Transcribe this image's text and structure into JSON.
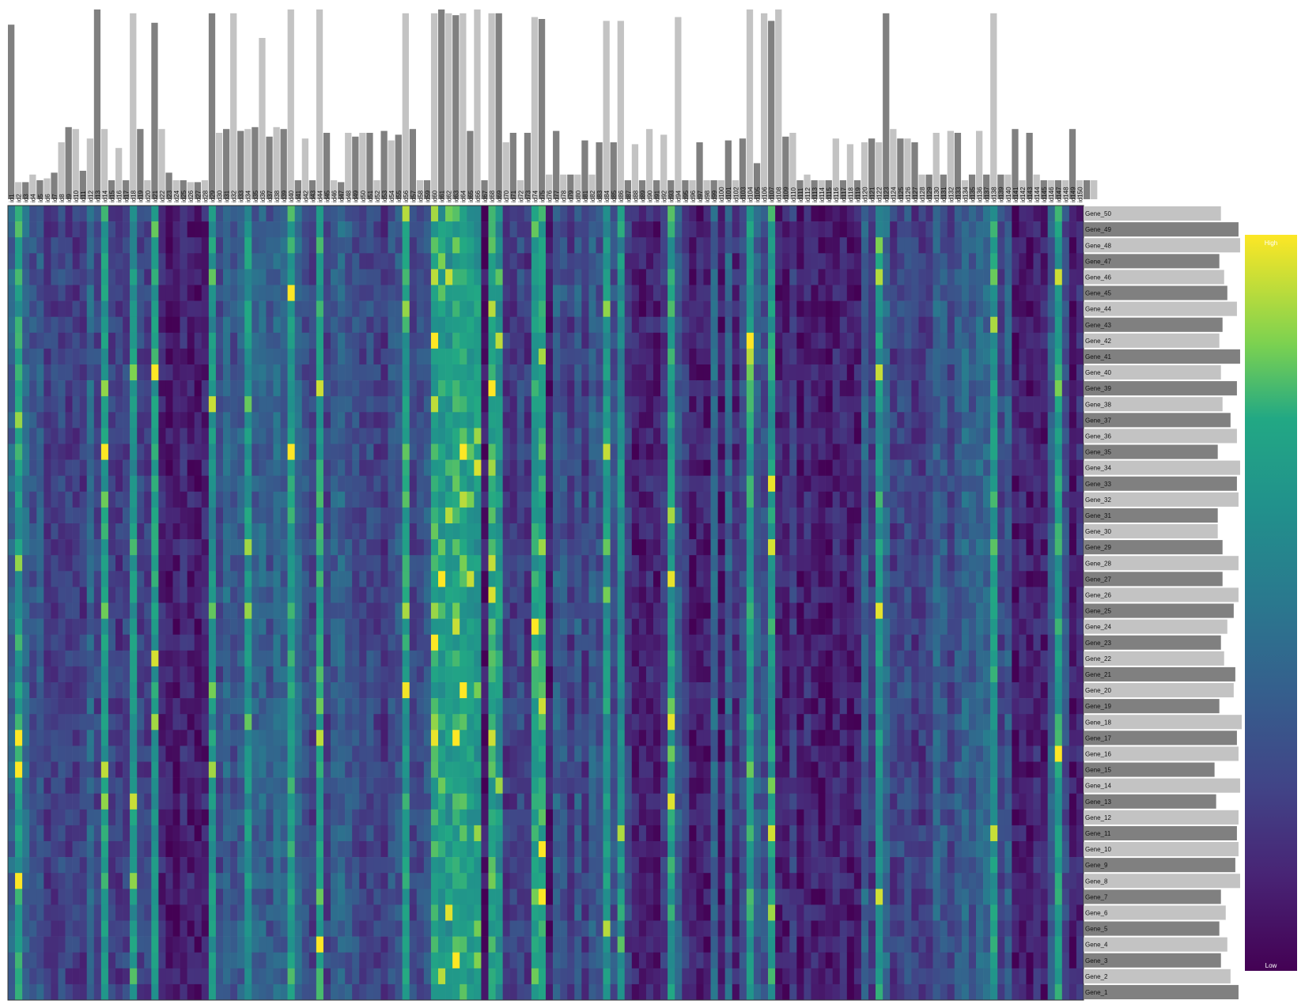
{
  "chart_data": {
    "type": "heatmap",
    "title": "",
    "color_scale": "viridis",
    "colors": {
      "bar_dark": "#808080",
      "bar_light": "#c3c3c3",
      "low": "#440154",
      "high": "#fde725",
      "background": "#ffffff"
    },
    "legend": {
      "high_label": "High",
      "low_label": "Low",
      "placement": "right"
    },
    "columns": [
      "id1",
      "id2",
      "id3",
      "id4",
      "id5",
      "id6",
      "id7",
      "id8",
      "id9",
      "id10",
      "id11",
      "id12",
      "id13",
      "id14",
      "id15",
      "id16",
      "id17",
      "id18",
      "id19",
      "id20",
      "id21",
      "id22",
      "id23",
      "id24",
      "id25",
      "id26",
      "id27",
      "id28",
      "id29",
      "id30",
      "id31",
      "id32",
      "id33",
      "id34",
      "id35",
      "id36",
      "id37",
      "id38",
      "id39",
      "id40",
      "id41",
      "id42",
      "id43",
      "id44",
      "id45",
      "id46",
      "id47",
      "id48",
      "id49",
      "id50",
      "id51",
      "id52",
      "id53",
      "id54",
      "id55",
      "id56",
      "id57",
      "id58",
      "id59",
      "id60",
      "id61",
      "id62",
      "id63",
      "id64",
      "id65",
      "id66",
      "id67",
      "id68",
      "id69",
      "id70",
      "id71",
      "id72",
      "id73",
      "id74",
      "id75",
      "id76",
      "id77",
      "id78",
      "id79",
      "id80",
      "id81",
      "id82",
      "id83",
      "id84",
      "id85",
      "id86",
      "id87",
      "id88",
      "id89",
      "id90",
      "id91",
      "id92",
      "id93",
      "id94",
      "id95",
      "id96",
      "id97",
      "id98",
      "id99",
      "id100",
      "id101",
      "id102",
      "id103",
      "id104",
      "id105",
      "id106",
      "id107",
      "id108",
      "id109",
      "id110",
      "id111",
      "id112",
      "id113",
      "id114",
      "id115",
      "id116",
      "id117",
      "id118",
      "id119",
      "id120",
      "id121",
      "id122",
      "id123",
      "id124",
      "id125",
      "id126",
      "id127",
      "id128",
      "id129",
      "id130",
      "id131",
      "id132",
      "id133",
      "id134",
      "id135",
      "id136",
      "id137",
      "id138",
      "id139",
      "id140",
      "id141",
      "id142",
      "id143",
      "id144",
      "id145",
      "id146",
      "id147",
      "id148",
      "id149",
      "id150"
    ],
    "rows_top_to_bottom": [
      "Gene_50",
      "Gene_49",
      "Gene_48",
      "Gene_47",
      "Gene_46",
      "Gene_45",
      "Gene_44",
      "Gene_43",
      "Gene_42",
      "Gene_41",
      "Gene_40",
      "Gene_39",
      "Gene_38",
      "Gene_37",
      "Gene_36",
      "Gene_35",
      "Gene_34",
      "Gene_33",
      "Gene_32",
      "Gene_31",
      "Gene_30",
      "Gene_29",
      "Gene_28",
      "Gene_27",
      "Gene_26",
      "Gene_25",
      "Gene_24",
      "Gene_23",
      "Gene_22",
      "Gene_21",
      "Gene_20",
      "Gene_19",
      "Gene_18",
      "Gene_17",
      "Gene_16",
      "Gene_15",
      "Gene_14",
      "Gene_13",
      "Gene_12",
      "Gene_11",
      "Gene_10",
      "Gene_9",
      "Gene_8",
      "Gene_7",
      "Gene_6",
      "Gene_5",
      "Gene_4",
      "Gene_3",
      "Gene_2",
      "Gene_1"
    ],
    "column_bar_values": [
      0.92,
      0.09,
      0.09,
      0.13,
      0.1,
      0.11,
      0.14,
      0.3,
      0.38,
      0.37,
      0.15,
      0.32,
      1.0,
      0.37,
      0.1,
      0.27,
      0.1,
      0.98,
      0.37,
      0.1,
      0.93,
      0.37,
      0.14,
      0.1,
      0.1,
      0.09,
      0.09,
      0.1,
      0.98,
      0.35,
      0.37,
      0.98,
      0.36,
      0.37,
      0.38,
      0.85,
      0.33,
      0.38,
      0.37,
      1.0,
      0.1,
      0.32,
      0.1,
      1.0,
      0.35,
      0.1,
      0.09,
      0.35,
      0.33,
      0.35,
      0.35,
      0.1,
      0.36,
      0.31,
      0.34,
      0.98,
      0.37,
      0.1,
      0.1,
      0.98,
      1.0,
      0.98,
      0.97,
      0.98,
      0.36,
      1.0,
      0.1,
      0.98,
      0.98,
      0.3,
      0.35,
      0.1,
      0.35,
      0.96,
      0.95,
      0.13,
      0.36,
      0.13,
      0.13,
      0.13,
      0.31,
      0.13,
      0.3,
      0.94,
      0.3,
      0.94,
      0.1,
      0.29,
      0.1,
      0.37,
      0.1,
      0.34,
      0.1,
      0.96,
      0.1,
      0.1,
      0.3,
      0.1,
      0.1,
      0.1,
      0.31,
      0.1,
      0.32,
      1.0,
      0.19,
      0.98,
      0.94,
      1.0,
      0.33,
      0.35,
      0.1,
      0.13,
      0.1,
      0.1,
      0.1,
      0.32,
      0.1,
      0.29,
      0.1,
      0.3,
      0.32,
      0.3,
      0.98,
      0.37,
      0.32,
      0.32,
      0.3,
      0.13,
      0.13,
      0.35,
      0.13,
      0.36,
      0.35,
      0.1,
      0.13,
      0.36,
      0.13,
      0.98,
      0.13,
      0.13,
      0.37,
      0.1,
      0.35,
      0.13,
      0.1,
      0.1,
      0.1,
      0.1,
      0.37,
      0.1,
      0.1,
      0.1
    ],
    "row_bar_values_top_to_bottom": [
      0.86,
      0.97,
      0.98,
      0.85,
      0.88,
      0.9,
      0.96,
      0.87,
      0.85,
      0.98,
      0.86,
      0.96,
      0.87,
      0.92,
      0.96,
      0.84,
      0.98,
      0.96,
      0.97,
      0.84,
      0.84,
      0.87,
      0.97,
      0.87,
      0.97,
      0.94,
      0.9,
      0.86,
      0.88,
      0.95,
      0.94,
      0.85,
      0.99,
      0.96,
      0.97,
      0.82,
      0.98,
      0.83,
      0.97,
      0.96,
      0.97,
      0.95,
      0.98,
      0.86,
      0.89,
      0.85,
      0.9,
      0.86,
      0.92,
      0.97
    ],
    "hot_columns": [
      "id2",
      "id14",
      "id18",
      "id21",
      "id29",
      "id34",
      "id40",
      "id44",
      "id56",
      "id60",
      "id61",
      "id62",
      "id63",
      "id64",
      "id65",
      "id66",
      "id68",
      "id69",
      "id74",
      "id75",
      "id84",
      "id86",
      "id93",
      "id104",
      "id107",
      "id122",
      "id138",
      "id147"
    ],
    "cool_columns": [
      "id22",
      "id23",
      "id24",
      "id25",
      "id26",
      "id27",
      "id28",
      "id67",
      "id76",
      "id88",
      "id89",
      "id90",
      "id91",
      "id96",
      "id97",
      "id98",
      "id100",
      "id102",
      "id108",
      "id109",
      "id111",
      "id112",
      "id113",
      "id114",
      "id115",
      "id116",
      "id117",
      "id118",
      "id119",
      "id141",
      "id142",
      "id143",
      "id144",
      "id145",
      "id149",
      "id150"
    ]
  }
}
